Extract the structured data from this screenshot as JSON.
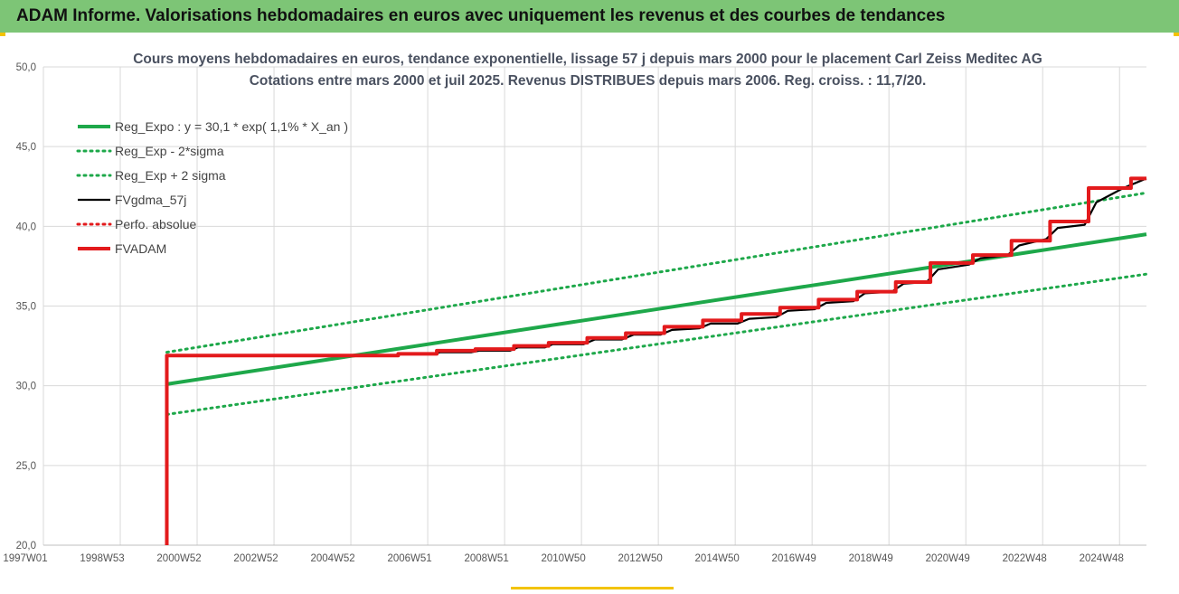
{
  "header": {
    "title": "ADAM Informe. Valorisations hebdomadaires en euros avec uniquement les revenus et des courbes de tendances"
  },
  "chart_data": {
    "type": "line",
    "title": "Cours moyens hebdomadaires en euros, tendance exponentielle, lissage 57 j depuis mars 2000 pour le placement Carl Zeiss Meditec AG",
    "subtitle": "Cotations entre mars 2000 et juil 2025. Revenus DISTRIBUES depuis mars 2006. Reg. croiss. : 11,7/20.",
    "xlabel": "",
    "ylabel": "",
    "x_range": [
      1997.0,
      2025.6
    ],
    "ylim": [
      20,
      50
    ],
    "y_ticks": [
      "20,0",
      "25,0",
      "30,0",
      "35,0",
      "40,0",
      "45,0",
      "50,0"
    ],
    "x_tick_labels": [
      "1997W01",
      "1998W53",
      "2000W52",
      "2002W52",
      "2004W52",
      "2006W51",
      "2008W51",
      "2010W50",
      "2012W50",
      "2014W50",
      "2016W49",
      "2018W49",
      "2020W49",
      "2022W48",
      "2024W48"
    ],
    "grid": true,
    "legend_position": "top-left",
    "series": [
      {
        "name": "Reg_Expo : y = 30,1 * exp( 1,1% *  X_an )",
        "color": "#1ea84a",
        "style": "solid-thick",
        "x": [
          2000.2,
          2025.6
        ],
        "y": [
          30.1,
          39.5
        ]
      },
      {
        "name": "Reg_Exp - 2*sigma",
        "color": "#1ea84a",
        "style": "dotted",
        "x": [
          2000.2,
          2025.6
        ],
        "y": [
          28.2,
          37.0
        ]
      },
      {
        "name": "Reg_Exp + 2 sigma",
        "color": "#1ea84a",
        "style": "dotted",
        "x": [
          2000.2,
          2025.6
        ],
        "y": [
          32.1,
          42.1
        ]
      },
      {
        "name": "FVgdma_57j",
        "color": "#000000",
        "style": "solid",
        "x": [
          2000.2,
          2000.2,
          2005.2,
          2006.1,
          2006.3,
          2007.1,
          2007.3,
          2008.1,
          2008.3,
          2009.1,
          2009.3,
          2010.0,
          2010.2,
          2011.0,
          2011.3,
          2012.0,
          2012.3,
          2013.0,
          2013.3,
          2014.0,
          2014.3,
          2015.0,
          2015.3,
          2016.0,
          2016.3,
          2017.0,
          2017.3,
          2018.0,
          2018.3,
          2019.0,
          2019.3,
          2019.9,
          2020.2,
          2021.0,
          2021.3,
          2022.0,
          2022.3,
          2023.0,
          2023.3,
          2024.0,
          2024.3,
          2025.0,
          2025.3,
          2025.6
        ],
        "y": [
          20.0,
          31.9,
          31.9,
          31.9,
          32.0,
          32.0,
          32.1,
          32.1,
          32.2,
          32.2,
          32.4,
          32.4,
          32.6,
          32.6,
          32.9,
          32.9,
          33.2,
          33.2,
          33.5,
          33.6,
          33.9,
          33.9,
          34.2,
          34.3,
          34.7,
          34.8,
          35.2,
          35.3,
          35.8,
          35.9,
          36.4,
          36.5,
          37.3,
          37.6,
          38.0,
          38.2,
          38.8,
          39.2,
          39.9,
          40.1,
          41.5,
          42.4,
          42.7,
          43.0
        ]
      },
      {
        "name": "Perfo. absolue",
        "color": "#e31a1c",
        "style": "dotted",
        "x": [],
        "y": []
      },
      {
        "name": "FVADAM",
        "color": "#e31a1c",
        "style": "solid-thick",
        "x": [
          2000.2,
          2000.2,
          2005.2,
          2006.2,
          2006.2,
          2007.2,
          2007.2,
          2008.2,
          2008.2,
          2009.2,
          2009.2,
          2010.1,
          2010.1,
          2011.1,
          2011.1,
          2012.1,
          2012.1,
          2013.1,
          2013.1,
          2014.1,
          2014.1,
          2015.1,
          2015.1,
          2016.1,
          2016.1,
          2017.1,
          2017.1,
          2018.1,
          2018.1,
          2019.1,
          2019.1,
          2020.0,
          2020.0,
          2021.1,
          2021.1,
          2022.1,
          2022.1,
          2023.1,
          2023.1,
          2024.1,
          2024.1,
          2025.2,
          2025.2,
          2025.6
        ],
        "y": [
          20.0,
          31.9,
          31.9,
          31.9,
          32.0,
          32.0,
          32.2,
          32.2,
          32.3,
          32.3,
          32.5,
          32.5,
          32.7,
          32.7,
          33.0,
          33.0,
          33.3,
          33.3,
          33.7,
          33.7,
          34.1,
          34.1,
          34.5,
          34.5,
          34.9,
          34.9,
          35.4,
          35.4,
          35.9,
          35.9,
          36.5,
          36.5,
          37.7,
          37.7,
          38.2,
          38.2,
          39.1,
          39.1,
          40.3,
          40.3,
          42.4,
          42.4,
          43.0,
          43.0
        ]
      }
    ]
  }
}
